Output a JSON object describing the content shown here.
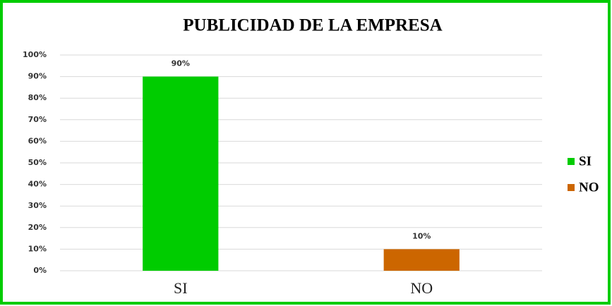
{
  "chart_data": {
    "type": "bar",
    "title": "PUBLICIDAD DE LA EMPRESA",
    "categories": [
      "SI",
      "NO"
    ],
    "values": [
      90,
      10
    ],
    "value_labels": [
      "90%",
      "10%"
    ],
    "colors": [
      "#00cc00",
      "#cc6600"
    ],
    "ylim": [
      0,
      100
    ],
    "yticks": [
      {
        "value": 0,
        "label": "0%"
      },
      {
        "value": 10,
        "label": "10%"
      },
      {
        "value": 20,
        "label": "20%"
      },
      {
        "value": 30,
        "label": "30%"
      },
      {
        "value": 40,
        "label": "40%"
      },
      {
        "value": 50,
        "label": "50%"
      },
      {
        "value": 60,
        "label": "60%"
      },
      {
        "value": 70,
        "label": "70%"
      },
      {
        "value": 80,
        "label": "80%"
      },
      {
        "value": 90,
        "label": "90%"
      },
      {
        "value": 100,
        "label": "100%"
      }
    ],
    "grid": true,
    "legend": "right"
  }
}
